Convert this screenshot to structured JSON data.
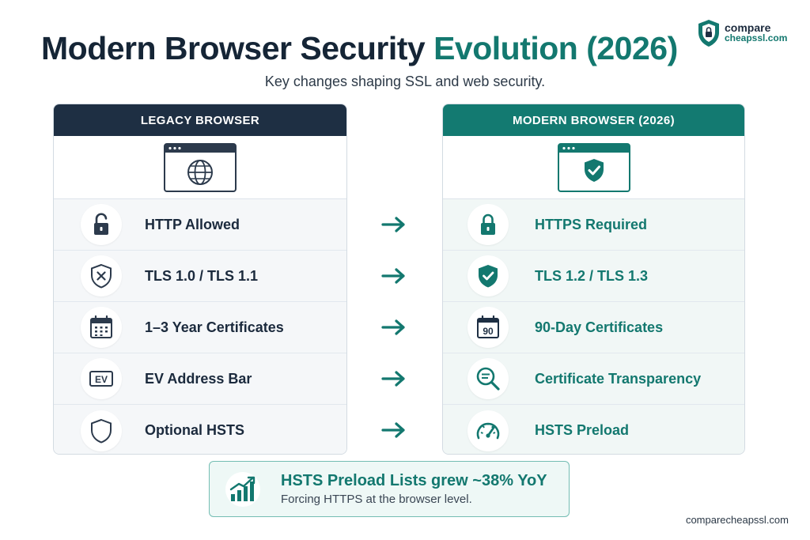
{
  "title": {
    "main": "Modern Browser Security ",
    "accent": "Evolution (2026)"
  },
  "subtitle": "Key changes shaping SSL and web security.",
  "logo": {
    "line1": "compare",
    "line2": "cheapssl.com",
    "icon": "shield-icon"
  },
  "legacy": {
    "header": "LEGACY BROWSER",
    "hero_icon": "browser-globe-icon",
    "items": [
      {
        "label": "HTTP Allowed",
        "icon": "unlocked-padlock-icon"
      },
      {
        "label": "TLS 1.0 / TLS 1.1",
        "icon": "shield-x-icon"
      },
      {
        "label": "1–3 Year Certificates",
        "icon": "calendar-icon"
      },
      {
        "label": "EV Address Bar",
        "icon": "ev-badge-icon"
      },
      {
        "label": "Optional HSTS",
        "icon": "shield-outline-icon"
      }
    ]
  },
  "modern": {
    "header": "MODERN BROWSER (2026)",
    "hero_icon": "browser-shield-check-icon",
    "items": [
      {
        "label": "HTTPS Required",
        "icon": "locked-padlock-icon"
      },
      {
        "label": "TLS 1.2 / TLS 1.3",
        "icon": "shield-check-icon"
      },
      {
        "label": "90-Day Certificates",
        "icon": "calendar-90-icon",
        "badge": "90"
      },
      {
        "label": "Certificate Transparency",
        "icon": "magnifier-icon"
      },
      {
        "label": "HSTS Preload",
        "icon": "speedometer-icon"
      }
    ]
  },
  "arrow_icon": "arrow-right-icon",
  "stat": {
    "title": "HSTS Preload Lists grew ~38% YoY",
    "subtitle": "Forcing HTTPS at the browser level.",
    "icon": "growth-chart-icon"
  },
  "footer": "comparecheapssl.com",
  "colors": {
    "navy": "#1e2f43",
    "teal": "#137a71",
    "light_teal": "#eef8f6"
  }
}
